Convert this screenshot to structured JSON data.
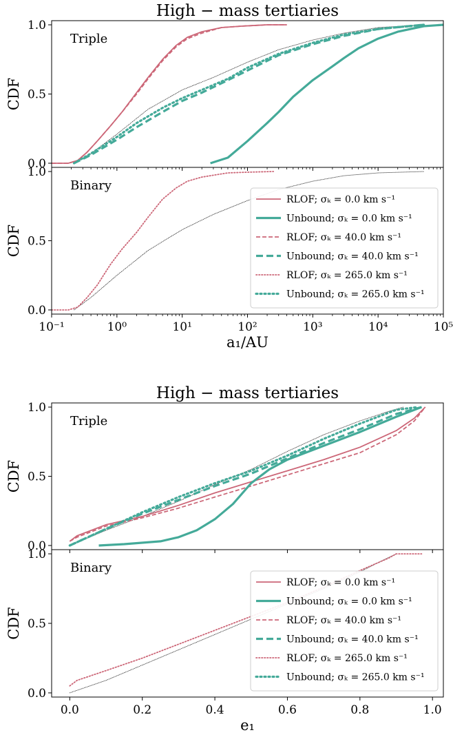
{
  "colors": {
    "rlof": "#cc6677",
    "unbound": "#44aa99",
    "ref": "#000000"
  },
  "chart_data": [
    {
      "type": "line",
      "title": "High − mass tertiaries",
      "xlabel": "a₁/AU",
      "xscale": "log",
      "xlim": [
        0.1,
        100000
      ],
      "xticks": [
        0.1,
        1,
        10,
        100,
        1000,
        10000,
        100000
      ],
      "xtick_labels": [
        "10⁻¹",
        "10⁰",
        "10¹",
        "10²",
        "10³",
        "10⁴",
        "10⁵"
      ],
      "legend_location": "lower-right of Binary panel",
      "legend": [
        {
          "label": "RLOF; σₖ = 0.0 km s⁻¹",
          "kind": "rlof",
          "style": "solid"
        },
        {
          "label": "Unbound; σₖ = 0.0 km s⁻¹",
          "kind": "unbound",
          "style": "solid"
        },
        {
          "label": "RLOF; σₖ = 40.0 km s⁻¹",
          "kind": "rlof",
          "style": "dashed"
        },
        {
          "label": "Unbound; σₖ = 40.0 km s⁻¹",
          "kind": "unbound",
          "style": "dashed"
        },
        {
          "label": "RLOF; σₖ = 265.0 km s⁻¹",
          "kind": "rlof",
          "style": "dotted"
        },
        {
          "label": "Unbound; σₖ = 265.0 km s⁻¹",
          "kind": "unbound",
          "style": "dotted"
        }
      ],
      "panels": [
        {
          "label": "Triple",
          "ylabel": "CDF",
          "ylim": [
            -0.03,
            1.03
          ],
          "yticks": [
            0.0,
            0.5,
            1.0
          ],
          "ytick_labels": [
            "0.0",
            "0.5",
            "1.0"
          ],
          "series": [
            {
              "kind": "ref",
              "style": "solid",
              "x": [
                0.22,
                0.4,
                1,
                3,
                10,
                30,
                100,
                300,
                1000,
                3000,
                10000,
                50000
              ],
              "y": [
                0.0,
                0.07,
                0.21,
                0.39,
                0.53,
                0.62,
                0.73,
                0.82,
                0.89,
                0.94,
                0.98,
                1.0
              ]
            },
            {
              "kind": "rlof",
              "style": "solid",
              "x": [
                0.1,
                0.18,
                0.25,
                0.35,
                0.5,
                0.8,
                1.2,
                2,
                3,
                5,
                8,
                12,
                20,
                40,
                80,
                200,
                400
              ],
              "y": [
                0.0,
                0.0,
                0.02,
                0.08,
                0.16,
                0.27,
                0.37,
                0.51,
                0.62,
                0.75,
                0.85,
                0.91,
                0.95,
                0.98,
                0.99,
                1.0,
                1.0
              ]
            },
            {
              "kind": "rlof",
              "style": "dashed",
              "x": [
                0.1,
                0.18,
                0.25,
                0.35,
                0.5,
                0.8,
                1.2,
                2,
                3,
                5,
                8,
                12,
                20,
                40,
                80,
                200,
                400
              ],
              "y": [
                0.0,
                0.0,
                0.02,
                0.08,
                0.16,
                0.27,
                0.37,
                0.5,
                0.61,
                0.74,
                0.84,
                0.9,
                0.94,
                0.98,
                0.99,
                1.0,
                1.0
              ]
            },
            {
              "kind": "unbound",
              "style": "solid",
              "x": [
                27,
                50,
                100,
                200,
                300,
                500,
                1000,
                2000,
                3000,
                5000,
                10000,
                20000,
                50000,
                100000
              ],
              "y": [
                0.0,
                0.04,
                0.16,
                0.29,
                0.37,
                0.48,
                0.6,
                0.7,
                0.76,
                0.83,
                0.9,
                0.95,
                0.99,
                1.0
              ]
            },
            {
              "kind": "unbound",
              "style": "dashed",
              "x": [
                0.22,
                0.4,
                1,
                2,
                5,
                10,
                20,
                50,
                100,
                300,
                1000,
                3000,
                10000,
                50000
              ],
              "y": [
                0.0,
                0.06,
                0.17,
                0.26,
                0.37,
                0.45,
                0.51,
                0.6,
                0.67,
                0.78,
                0.86,
                0.92,
                0.97,
                1.0
              ]
            },
            {
              "kind": "unbound",
              "style": "dotted",
              "x": [
                0.22,
                0.4,
                1,
                2,
                5,
                10,
                20,
                50,
                100,
                300,
                1000,
                3000,
                10000,
                50000
              ],
              "y": [
                0.0,
                0.07,
                0.19,
                0.29,
                0.4,
                0.47,
                0.53,
                0.61,
                0.69,
                0.79,
                0.87,
                0.93,
                0.97,
                1.0
              ]
            }
          ]
        },
        {
          "label": "Binary",
          "ylabel": "CDF",
          "ylim": [
            -0.03,
            1.03
          ],
          "yticks": [
            0.0,
            0.5,
            1.0
          ],
          "ytick_labels": [
            "0.0",
            "0.5",
            "1.0"
          ],
          "series": [
            {
              "kind": "ref",
              "style": "solid",
              "x": [
                0.22,
                0.4,
                1,
                3,
                10,
                30,
                100,
                300,
                1000,
                3000,
                10000,
                50000
              ],
              "y": [
                0.0,
                0.09,
                0.25,
                0.43,
                0.58,
                0.69,
                0.79,
                0.87,
                0.93,
                0.97,
                0.99,
                1.0
              ]
            },
            {
              "kind": "rlof",
              "style": "dotted",
              "x": [
                0.1,
                0.18,
                0.25,
                0.35,
                0.5,
                0.8,
                1.2,
                2,
                3,
                5,
                8,
                12,
                20,
                50,
                100,
                250
              ],
              "y": [
                0.0,
                0.0,
                0.02,
                0.09,
                0.18,
                0.33,
                0.44,
                0.56,
                0.67,
                0.8,
                0.88,
                0.93,
                0.96,
                0.99,
                0.995,
                1.0
              ]
            }
          ]
        }
      ]
    },
    {
      "type": "line",
      "title": "High − mass tertiaries",
      "xlabel": "e₁",
      "xscale": "linear",
      "xlim": [
        -0.05,
        1.03
      ],
      "xticks": [
        0.0,
        0.2,
        0.4,
        0.6,
        0.8,
        1.0
      ],
      "xtick_labels": [
        "0.0",
        "0.2",
        "0.4",
        "0.6",
        "0.8",
        "1.0"
      ],
      "legend_location": "lower-right of Binary panel",
      "legend": [
        {
          "label": "RLOF; σₖ = 0.0 km s⁻¹",
          "kind": "rlof",
          "style": "solid"
        },
        {
          "label": "Unbound; σₖ = 0.0 km s⁻¹",
          "kind": "unbound",
          "style": "solid"
        },
        {
          "label": "RLOF; σₖ = 40.0 km s⁻¹",
          "kind": "rlof",
          "style": "dashed"
        },
        {
          "label": "Unbound; σₖ = 40.0 km s⁻¹",
          "kind": "unbound",
          "style": "dashed"
        },
        {
          "label": "RLOF; σₖ = 265.0 km s⁻¹",
          "kind": "rlof",
          "style": "dotted"
        },
        {
          "label": "Unbound; σₖ = 265.0 km s⁻¹",
          "kind": "unbound",
          "style": "dotted"
        }
      ],
      "panels": [
        {
          "label": "Triple",
          "ylabel": "CDF",
          "ylim": [
            -0.03,
            1.03
          ],
          "yticks": [
            0.0,
            0.5,
            1.0
          ],
          "ytick_labels": [
            "0.0",
            "0.5",
            "1.0"
          ],
          "series": [
            {
              "kind": "ref",
              "style": "solid",
              "x": [
                0.0,
                0.1,
                0.2,
                0.3,
                0.4,
                0.5,
                0.6,
                0.7,
                0.8,
                0.88,
                0.92
              ],
              "y": [
                0.0,
                0.11,
                0.21,
                0.32,
                0.44,
                0.55,
                0.68,
                0.8,
                0.9,
                0.97,
                1.0
              ]
            },
            {
              "kind": "rlof",
              "style": "solid",
              "x": [
                0.0,
                0.02,
                0.1,
                0.2,
                0.3,
                0.4,
                0.5,
                0.6,
                0.7,
                0.8,
                0.9,
                0.95,
                0.98
              ],
              "y": [
                0.03,
                0.07,
                0.15,
                0.21,
                0.29,
                0.38,
                0.46,
                0.54,
                0.62,
                0.71,
                0.83,
                0.92,
                1.0
              ]
            },
            {
              "kind": "rlof",
              "style": "dashed",
              "x": [
                0.0,
                0.02,
                0.1,
                0.2,
                0.3,
                0.4,
                0.5,
                0.6,
                0.7,
                0.8,
                0.9,
                0.95,
                0.98
              ],
              "y": [
                0.03,
                0.06,
                0.14,
                0.2,
                0.27,
                0.35,
                0.43,
                0.51,
                0.59,
                0.67,
                0.8,
                0.9,
                1.0
              ]
            },
            {
              "kind": "unbound",
              "style": "solid",
              "x": [
                0.08,
                0.15,
                0.25,
                0.3,
                0.35,
                0.4,
                0.45,
                0.5,
                0.55,
                0.6,
                0.7,
                0.8,
                0.9,
                0.97
              ],
              "y": [
                0.0,
                0.01,
                0.03,
                0.06,
                0.11,
                0.19,
                0.3,
                0.45,
                0.55,
                0.62,
                0.72,
                0.82,
                0.93,
                1.0
              ]
            },
            {
              "kind": "unbound",
              "style": "dashed",
              "x": [
                0.0,
                0.1,
                0.2,
                0.3,
                0.4,
                0.5,
                0.6,
                0.7,
                0.8,
                0.9,
                0.97
              ],
              "y": [
                0.0,
                0.12,
                0.23,
                0.33,
                0.43,
                0.52,
                0.63,
                0.74,
                0.84,
                0.95,
                1.0
              ]
            },
            {
              "kind": "unbound",
              "style": "dotted",
              "x": [
                0.0,
                0.1,
                0.2,
                0.3,
                0.4,
                0.5,
                0.6,
                0.7,
                0.8,
                0.9,
                0.96
              ],
              "y": [
                0.0,
                0.12,
                0.24,
                0.35,
                0.45,
                0.54,
                0.65,
                0.77,
                0.88,
                0.98,
                1.0
              ]
            }
          ]
        },
        {
          "label": "Binary",
          "ylabel": "CDF",
          "ylim": [
            -0.03,
            1.03
          ],
          "yticks": [
            0.0,
            0.5,
            1.0
          ],
          "ytick_labels": [
            "0.0",
            "0.5",
            "1.0"
          ],
          "series": [
            {
              "kind": "ref",
              "style": "solid",
              "x": [
                0.0,
                0.1,
                0.2,
                0.3,
                0.4,
                0.5,
                0.6,
                0.7,
                0.8,
                0.86,
                0.9
              ],
              "y": [
                0.0,
                0.09,
                0.2,
                0.31,
                0.42,
                0.53,
                0.64,
                0.75,
                0.87,
                0.95,
                1.0
              ]
            },
            {
              "kind": "rlof",
              "style": "dotted",
              "x": [
                0.0,
                0.02,
                0.1,
                0.2,
                0.3,
                0.4,
                0.5,
                0.6,
                0.7,
                0.8,
                0.88,
                0.9,
                0.97
              ],
              "y": [
                0.05,
                0.09,
                0.16,
                0.25,
                0.35,
                0.45,
                0.55,
                0.65,
                0.76,
                0.88,
                0.97,
                1.0,
                1.0
              ]
            }
          ]
        }
      ]
    }
  ]
}
